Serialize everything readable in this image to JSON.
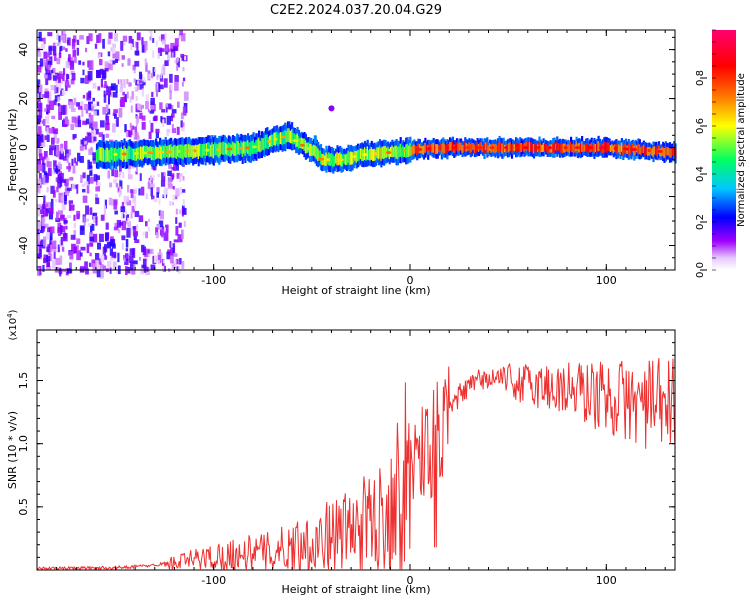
{
  "title": "C2E2.2024.037.20.04.G29",
  "chart_data": [
    {
      "type": "heatmap",
      "xlabel": "Height of straight line (km)",
      "ylabel": "Frequency (Hz)",
      "xlim": [
        -190,
        135
      ],
      "ylim": [
        -50,
        48
      ],
      "xticks": [
        -100,
        0,
        100
      ],
      "yticks": [
        -40,
        -20,
        0,
        20,
        40
      ],
      "colorbar": {
        "label": "Normalized spectral amplitude",
        "range": [
          0,
          1
        ],
        "ticks": [
          "0.0",
          "0.2",
          "0.4",
          "0.6",
          "0.8"
        ],
        "colors": [
          "#ffffff",
          "#a000ff",
          "#0000ff",
          "#00c8ff",
          "#00ff60",
          "#ffff00",
          "#ff7000",
          "#ff0000",
          "#ff0070"
        ]
      },
      "ridge": {
        "description_points": [
          {
            "x": -155,
            "y": -3
          },
          {
            "x": -130,
            "y": -2
          },
          {
            "x": -100,
            "y": -1
          },
          {
            "x": -80,
            "y": 0
          },
          {
            "x": -70,
            "y": 3
          },
          {
            "x": -62,
            "y": 5
          },
          {
            "x": -55,
            "y": 1
          },
          {
            "x": -50,
            "y": -1
          },
          {
            "x": -45,
            "y": -5
          },
          {
            "x": -35,
            "y": -5
          },
          {
            "x": -25,
            "y": -3
          },
          {
            "x": -10,
            "y": -2
          },
          {
            "x": 0,
            "y": -1
          },
          {
            "x": 20,
            "y": 0
          },
          {
            "x": 60,
            "y": 0
          },
          {
            "x": 100,
            "y": 0
          },
          {
            "x": 135,
            "y": -2
          }
        ]
      }
    },
    {
      "type": "line",
      "xlabel": "Height of straight line (km)",
      "ylabel": "SNR (10 * v/v)",
      "multiplier": "(x10",
      "multiplier_exp": "4",
      "xlim": [
        -190,
        135
      ],
      "ylim": [
        0,
        19000
      ],
      "xticks": [
        -100,
        0,
        100
      ],
      "yticks": [
        5000,
        10000,
        15000
      ],
      "ytick_labels": [
        "0.5",
        "1.0",
        "1.5"
      ],
      "series": [
        {
          "color": "#ee3030",
          "envelope_mean": [
            {
              "x": -190,
              "y": 150
            },
            {
              "x": -150,
              "y": 200
            },
            {
              "x": -130,
              "y": 400
            },
            {
              "x": -110,
              "y": 1000
            },
            {
              "x": -90,
              "y": 1500
            },
            {
              "x": -70,
              "y": 1800
            },
            {
              "x": -50,
              "y": 2800
            },
            {
              "x": -30,
              "y": 3800
            },
            {
              "x": -15,
              "y": 5000
            },
            {
              "x": -5,
              "y": 8000
            },
            {
              "x": 5,
              "y": 10500
            },
            {
              "x": 15,
              "y": 11500
            },
            {
              "x": 25,
              "y": 14000
            },
            {
              "x": 35,
              "y": 15200
            },
            {
              "x": 45,
              "y": 15400
            },
            {
              "x": 60,
              "y": 15000
            },
            {
              "x": 80,
              "y": 14800
            },
            {
              "x": 100,
              "y": 14300
            },
            {
              "x": 120,
              "y": 13800
            },
            {
              "x": 135,
              "y": 13800
            }
          ]
        }
      ]
    }
  ]
}
